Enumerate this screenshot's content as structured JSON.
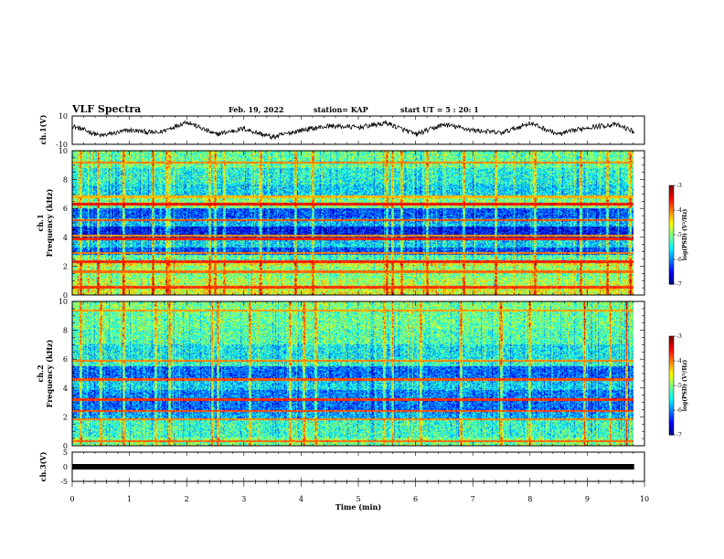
{
  "header": {
    "title": "VLF Spectra",
    "date": "Feb. 19, 2022",
    "station": "station= KAP",
    "start": "start UT = 5 : 20: 1"
  },
  "chart_data": [
    {
      "type": "line",
      "panel": "ch1-waveform",
      "ylabel": "ch.1(V)",
      "ylim": [
        -10,
        10
      ],
      "y_ticks": [
        "10",
        "-10"
      ],
      "xlim": [
        0,
        10
      ],
      "x_end": 9.82,
      "series": [
        {
          "x": [
            0,
            0.5,
            1,
            1.5,
            2,
            2.5,
            3,
            3.5,
            4,
            4.5,
            5,
            5.5,
            6,
            6.5,
            7,
            7.5,
            8,
            8.5,
            9,
            9.5,
            9.82
          ],
          "y": [
            3,
            -4,
            0,
            -2,
            6,
            -3,
            1,
            -5,
            0,
            3,
            2,
            5,
            -3,
            4,
            0,
            -2,
            5,
            -3,
            2,
            4,
            -1
          ]
        }
      ]
    },
    {
      "type": "heatmap",
      "panel": "ch1-spectrogram",
      "ylabel": "ch.1",
      "ylabel2": "Frequency (kHz)",
      "ylim": [
        0,
        10
      ],
      "y_ticks": [
        "0",
        "2",
        "4",
        "6",
        "8",
        "10"
      ],
      "xlim": [
        0,
        10
      ],
      "x_end": 9.82,
      "colorbar": {
        "range": [
          -7,
          -3
        ],
        "ticks": [
          "-3",
          "-4",
          "-5",
          "-6",
          "-7"
        ],
        "label": "log(PSD) (V²/Hz)"
      },
      "bands": [
        {
          "f": 0.3,
          "v": -4.6,
          "w": 0.3
        },
        {
          "f": 0.8,
          "v": -4.8,
          "w": 0.4
        },
        {
          "f": 1.3,
          "v": -5.0,
          "w": 0.3
        },
        {
          "f": 1.7,
          "v": -4.9,
          "w": 0.3
        },
        {
          "f": 2.2,
          "v": -4.6,
          "w": 0.2
        },
        {
          "f": 2.6,
          "v": -5.2,
          "w": 0.3
        },
        {
          "f": 3.0,
          "v": -6.2,
          "w": 0.3
        },
        {
          "f": 3.6,
          "v": -5.6,
          "w": 0.4
        },
        {
          "f": 4.3,
          "v": -6.5,
          "w": 0.6
        },
        {
          "f": 5.0,
          "v": -5.7,
          "w": 0.4
        },
        {
          "f": 5.6,
          "v": -6.2,
          "w": 0.4
        },
        {
          "f": 6.5,
          "v": -5.0,
          "w": 0.4
        },
        {
          "f": 7.2,
          "v": -5.6,
          "w": 0.6
        },
        {
          "f": 8.3,
          "v": -5.4,
          "w": 0.8
        },
        {
          "f": 9.4,
          "v": -5.1,
          "w": 0.8
        }
      ],
      "lines": [
        {
          "f": 0.5,
          "v": -3.7
        },
        {
          "f": 1.6,
          "v": -3.9
        },
        {
          "f": 2.3,
          "v": -3.6
        },
        {
          "f": 2.9,
          "v": -4.0
        },
        {
          "f": 3.9,
          "v": -3.6
        },
        {
          "f": 4.1,
          "v": -4.1
        },
        {
          "f": 5.2,
          "v": -3.8
        },
        {
          "f": 6.3,
          "v": -3.5
        },
        {
          "f": 6.8,
          "v": -4.2
        },
        {
          "f": 9.2,
          "v": -4.0
        }
      ],
      "bursts": [
        0.15,
        0.45,
        0.9,
        1.4,
        1.65,
        1.7,
        2.4,
        2.5,
        2.65,
        3.3,
        3.9,
        4.2,
        5.5,
        5.6,
        5.75,
        6.2,
        6.85,
        7.4,
        8.1,
        8.9,
        9.35,
        9.75
      ]
    },
    {
      "type": "heatmap",
      "panel": "ch2-spectrogram",
      "ylabel": "ch.2",
      "ylabel2": "Frequency (kHz)",
      "ylim": [
        0,
        10
      ],
      "y_ticks": [
        "0",
        "2",
        "4",
        "6",
        "8",
        "10"
      ],
      "xlim": [
        0,
        10
      ],
      "x_end": 9.82,
      "colorbar": {
        "range": [
          -7,
          -3
        ],
        "ticks": [
          "-3",
          "-4",
          "-5",
          "-6",
          "-7"
        ],
        "label": "log(PSD) (V²/Hz)"
      },
      "bands": [
        {
          "f": 0.3,
          "v": -5.0,
          "w": 0.4
        },
        {
          "f": 0.9,
          "v": -5.3,
          "w": 0.6
        },
        {
          "f": 1.6,
          "v": -5.3,
          "w": 0.4
        },
        {
          "f": 2.1,
          "v": -5.8,
          "w": 0.3
        },
        {
          "f": 2.7,
          "v": -6.1,
          "w": 0.5
        },
        {
          "f": 3.5,
          "v": -6.0,
          "w": 0.4
        },
        {
          "f": 4.2,
          "v": -5.6,
          "w": 0.4
        },
        {
          "f": 5.1,
          "v": -6.1,
          "w": 0.6
        },
        {
          "f": 5.7,
          "v": -5.3,
          "w": 0.3
        },
        {
          "f": 6.6,
          "v": -5.5,
          "w": 0.6
        },
        {
          "f": 7.6,
          "v": -5.2,
          "w": 0.8
        },
        {
          "f": 8.8,
          "v": -5.1,
          "w": 1.0
        },
        {
          "f": 9.7,
          "v": -5.0,
          "w": 0.5
        }
      ],
      "lines": [
        {
          "f": 1.8,
          "v": -4.0
        },
        {
          "f": 2.4,
          "v": -3.8
        },
        {
          "f": 3.2,
          "v": -3.7
        },
        {
          "f": 4.6,
          "v": -3.8
        },
        {
          "f": 5.9,
          "v": -4.0
        },
        {
          "f": 0.3,
          "v": -3.9
        },
        {
          "f": 9.4,
          "v": -4.1
        }
      ],
      "bursts": [
        0.15,
        0.5,
        0.9,
        1.45,
        1.7,
        2.45,
        2.55,
        3.1,
        3.8,
        4.05,
        4.25,
        5.45,
        5.6,
        6.1,
        6.8,
        7.5,
        8.0,
        8.95,
        9.4,
        9.7
      ]
    },
    {
      "type": "line",
      "panel": "ch3-waveform",
      "ylabel": "ch.3(V)",
      "ylim": [
        -5,
        5
      ],
      "y_ticks": [
        "5",
        "0",
        "-5"
      ],
      "xlim": [
        0,
        10
      ],
      "x_end": 9.82,
      "xlabel": "Time (min)",
      "x_ticks": [
        "0",
        "1",
        "2",
        "3",
        "4",
        "5",
        "6",
        "7",
        "8",
        "9",
        "10"
      ],
      "series": [
        {
          "x": [
            0,
            9.82
          ],
          "y": [
            0,
            0
          ]
        }
      ]
    }
  ]
}
